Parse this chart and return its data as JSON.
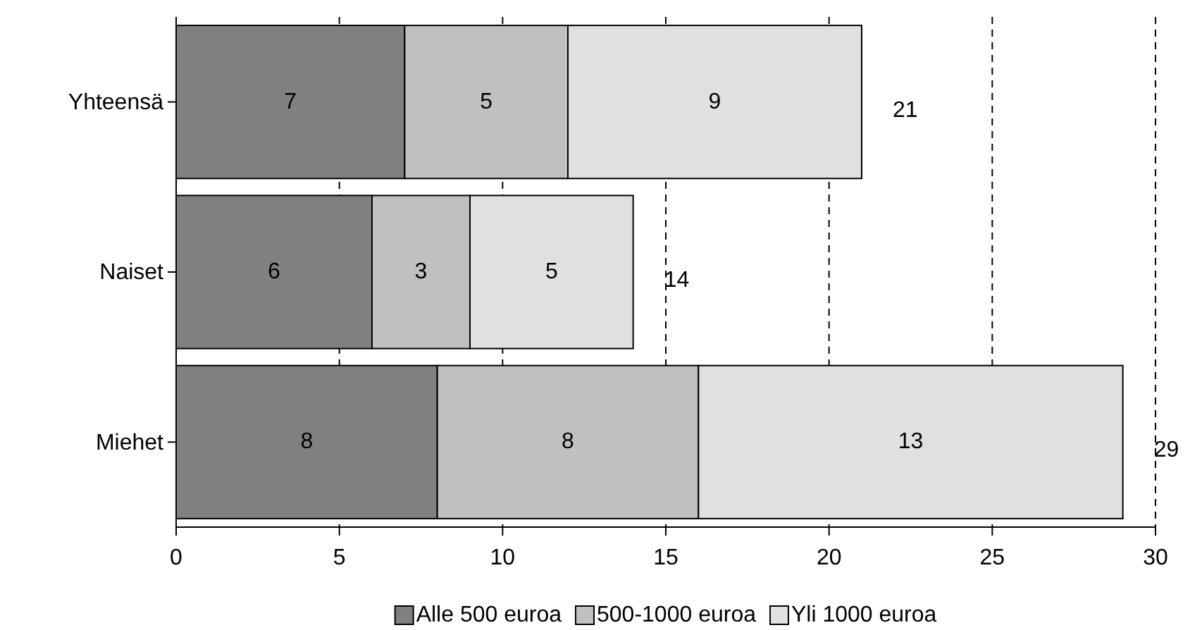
{
  "chart_data": {
    "type": "bar",
    "orientation": "horizontal",
    "stacked": true,
    "categories": [
      "Yhteensä",
      "Naiset",
      "Miehet"
    ],
    "series": [
      {
        "name": "Alle 500 euroa",
        "color": "#808080",
        "values": [
          7,
          6,
          8
        ]
      },
      {
        "name": "500-1000 euroa",
        "color": "#c0c0c0",
        "values": [
          5,
          3,
          8
        ]
      },
      {
        "name": "Yli 1000 euroa",
        "color": "#e0e0e0",
        "values": [
          9,
          5,
          13
        ]
      }
    ],
    "totals": [
      "21",
      "14",
      "29"
    ],
    "data_labels": true,
    "xlim": [
      0,
      30
    ],
    "xticks": [
      0,
      5,
      10,
      15,
      20,
      25,
      30
    ],
    "grid": "x",
    "legend": "bottom"
  }
}
